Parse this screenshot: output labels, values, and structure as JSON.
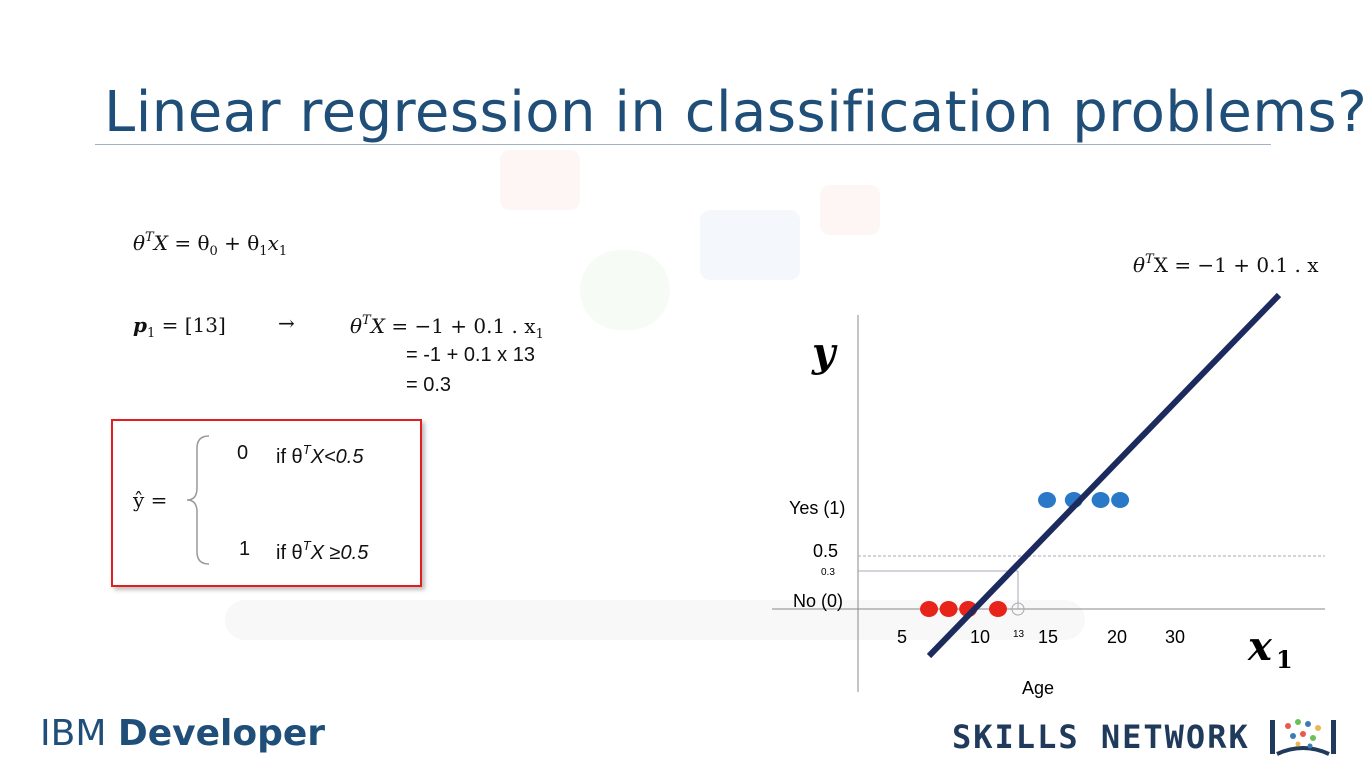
{
  "slide": {
    "title": "Linear regression in classification problems?",
    "equation_general": {
      "lhs": "θ",
      "sup": "T",
      "x": "X",
      "rhs_parts": [
        "= θ",
        "0",
        " + θ",
        "1",
        "x",
        "1"
      ]
    },
    "point_label": {
      "p": "p",
      "sub": "1",
      "value": "= [13]",
      "arrow": "→"
    },
    "calc_lines": [
      "= -1 + 0.1 x 13",
      "= 0.3"
    ],
    "calc_first": {
      "theta": "θ",
      "sup": "T",
      "x": "X",
      "rest": " = −1 + 0.1 . x",
      "sub": "1"
    },
    "decision": {
      "yhat": "ŷ =",
      "case0_value": "0",
      "case0_cond_prefix": "if θ",
      "case0_cond_sup": "T",
      "case0_cond_suffix": "X<0.5",
      "case1_value": "1",
      "case1_cond_prefix": "if θ",
      "case1_cond_sup": "T",
      "case1_cond_suffix": "X ≥0.5"
    },
    "line_equation": "θ",
    "line_equation_sup": "T",
    "line_equation_rest": "X = −1 + 0.1 . x"
  },
  "chart_data": {
    "type": "scatter",
    "ylabel": "y",
    "xlabel": "x",
    "xlabel_sub": "1",
    "axis_caption": "Age",
    "x_ticks": [
      "5",
      "10",
      "15",
      "20",
      "30"
    ],
    "marked_x": "13",
    "y_ticks": [
      "Yes (1)",
      "0.5",
      "0.3",
      "No (0)"
    ],
    "series": [
      {
        "color": "#e8231a",
        "x": [
          5,
          7,
          9,
          11.5
        ],
        "y": [
          0,
          0,
          0,
          0
        ]
      },
      {
        "color": "#2a78c8",
        "x": [
          15,
          17,
          19,
          21
        ],
        "y": [
          1,
          1,
          1,
          1
        ]
      }
    ],
    "regression_line": {
      "intercept": -1,
      "slope": 0.1
    },
    "threshold": 0.5,
    "prediction": {
      "x": 13,
      "y": 0.3
    }
  },
  "branding": {
    "left_prefix": "IBM",
    "left_bold": "Developer",
    "right": "SKILLS NETWORK"
  },
  "colors": {
    "title": "#1f4e79",
    "box": "#e02020",
    "line": "#1c2a5e"
  }
}
